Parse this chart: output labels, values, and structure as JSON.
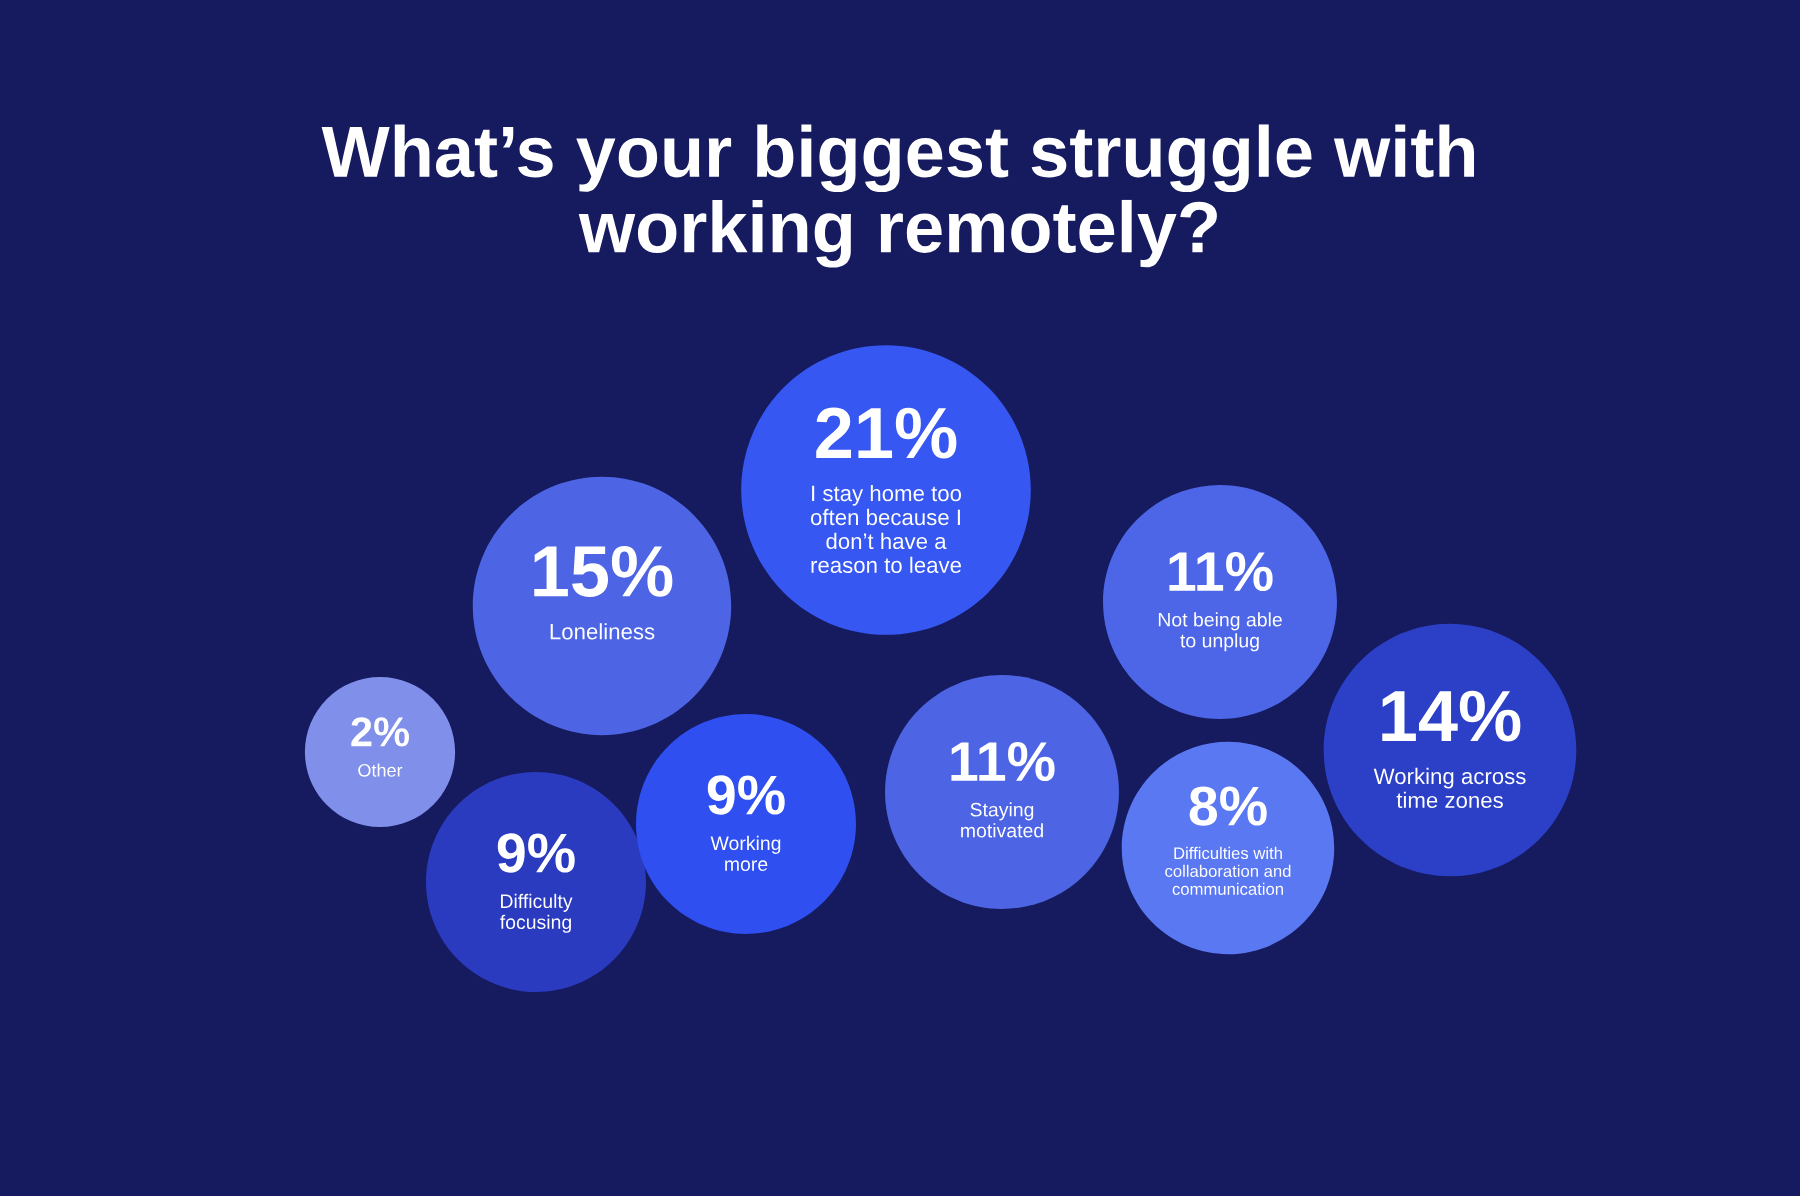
{
  "chart_data": {
    "type": "other",
    "title": "What’s your biggest struggle with\nworking remotely?",
    "categories": [
      "Other",
      "Difficulty\nfocusing",
      "Loneliness",
      "Working\nmore",
      "I stay home too\noften because I\ndon’t have a\nreason to leave",
      "Staying\nmotivated",
      "Not being able\nto unplug",
      "Difficulties with\ncollaboration and\ncommunication",
      "Working across\ntime zones"
    ],
    "values": [
      2,
      9,
      15,
      9,
      21,
      11,
      11,
      8,
      14
    ],
    "value_labels": [
      "2%",
      "9%",
      "15%",
      "9%",
      "21%",
      "11%",
      "11%",
      "8%",
      "14%"
    ],
    "colors": [
      "#7f8fea",
      "#2a3bbf",
      "#4d65e4",
      "#2f4ff0",
      "#3657f2",
      "#4d65e4",
      "#4d66e8",
      "#5a78f2",
      "#2b40c6"
    ]
  }
}
